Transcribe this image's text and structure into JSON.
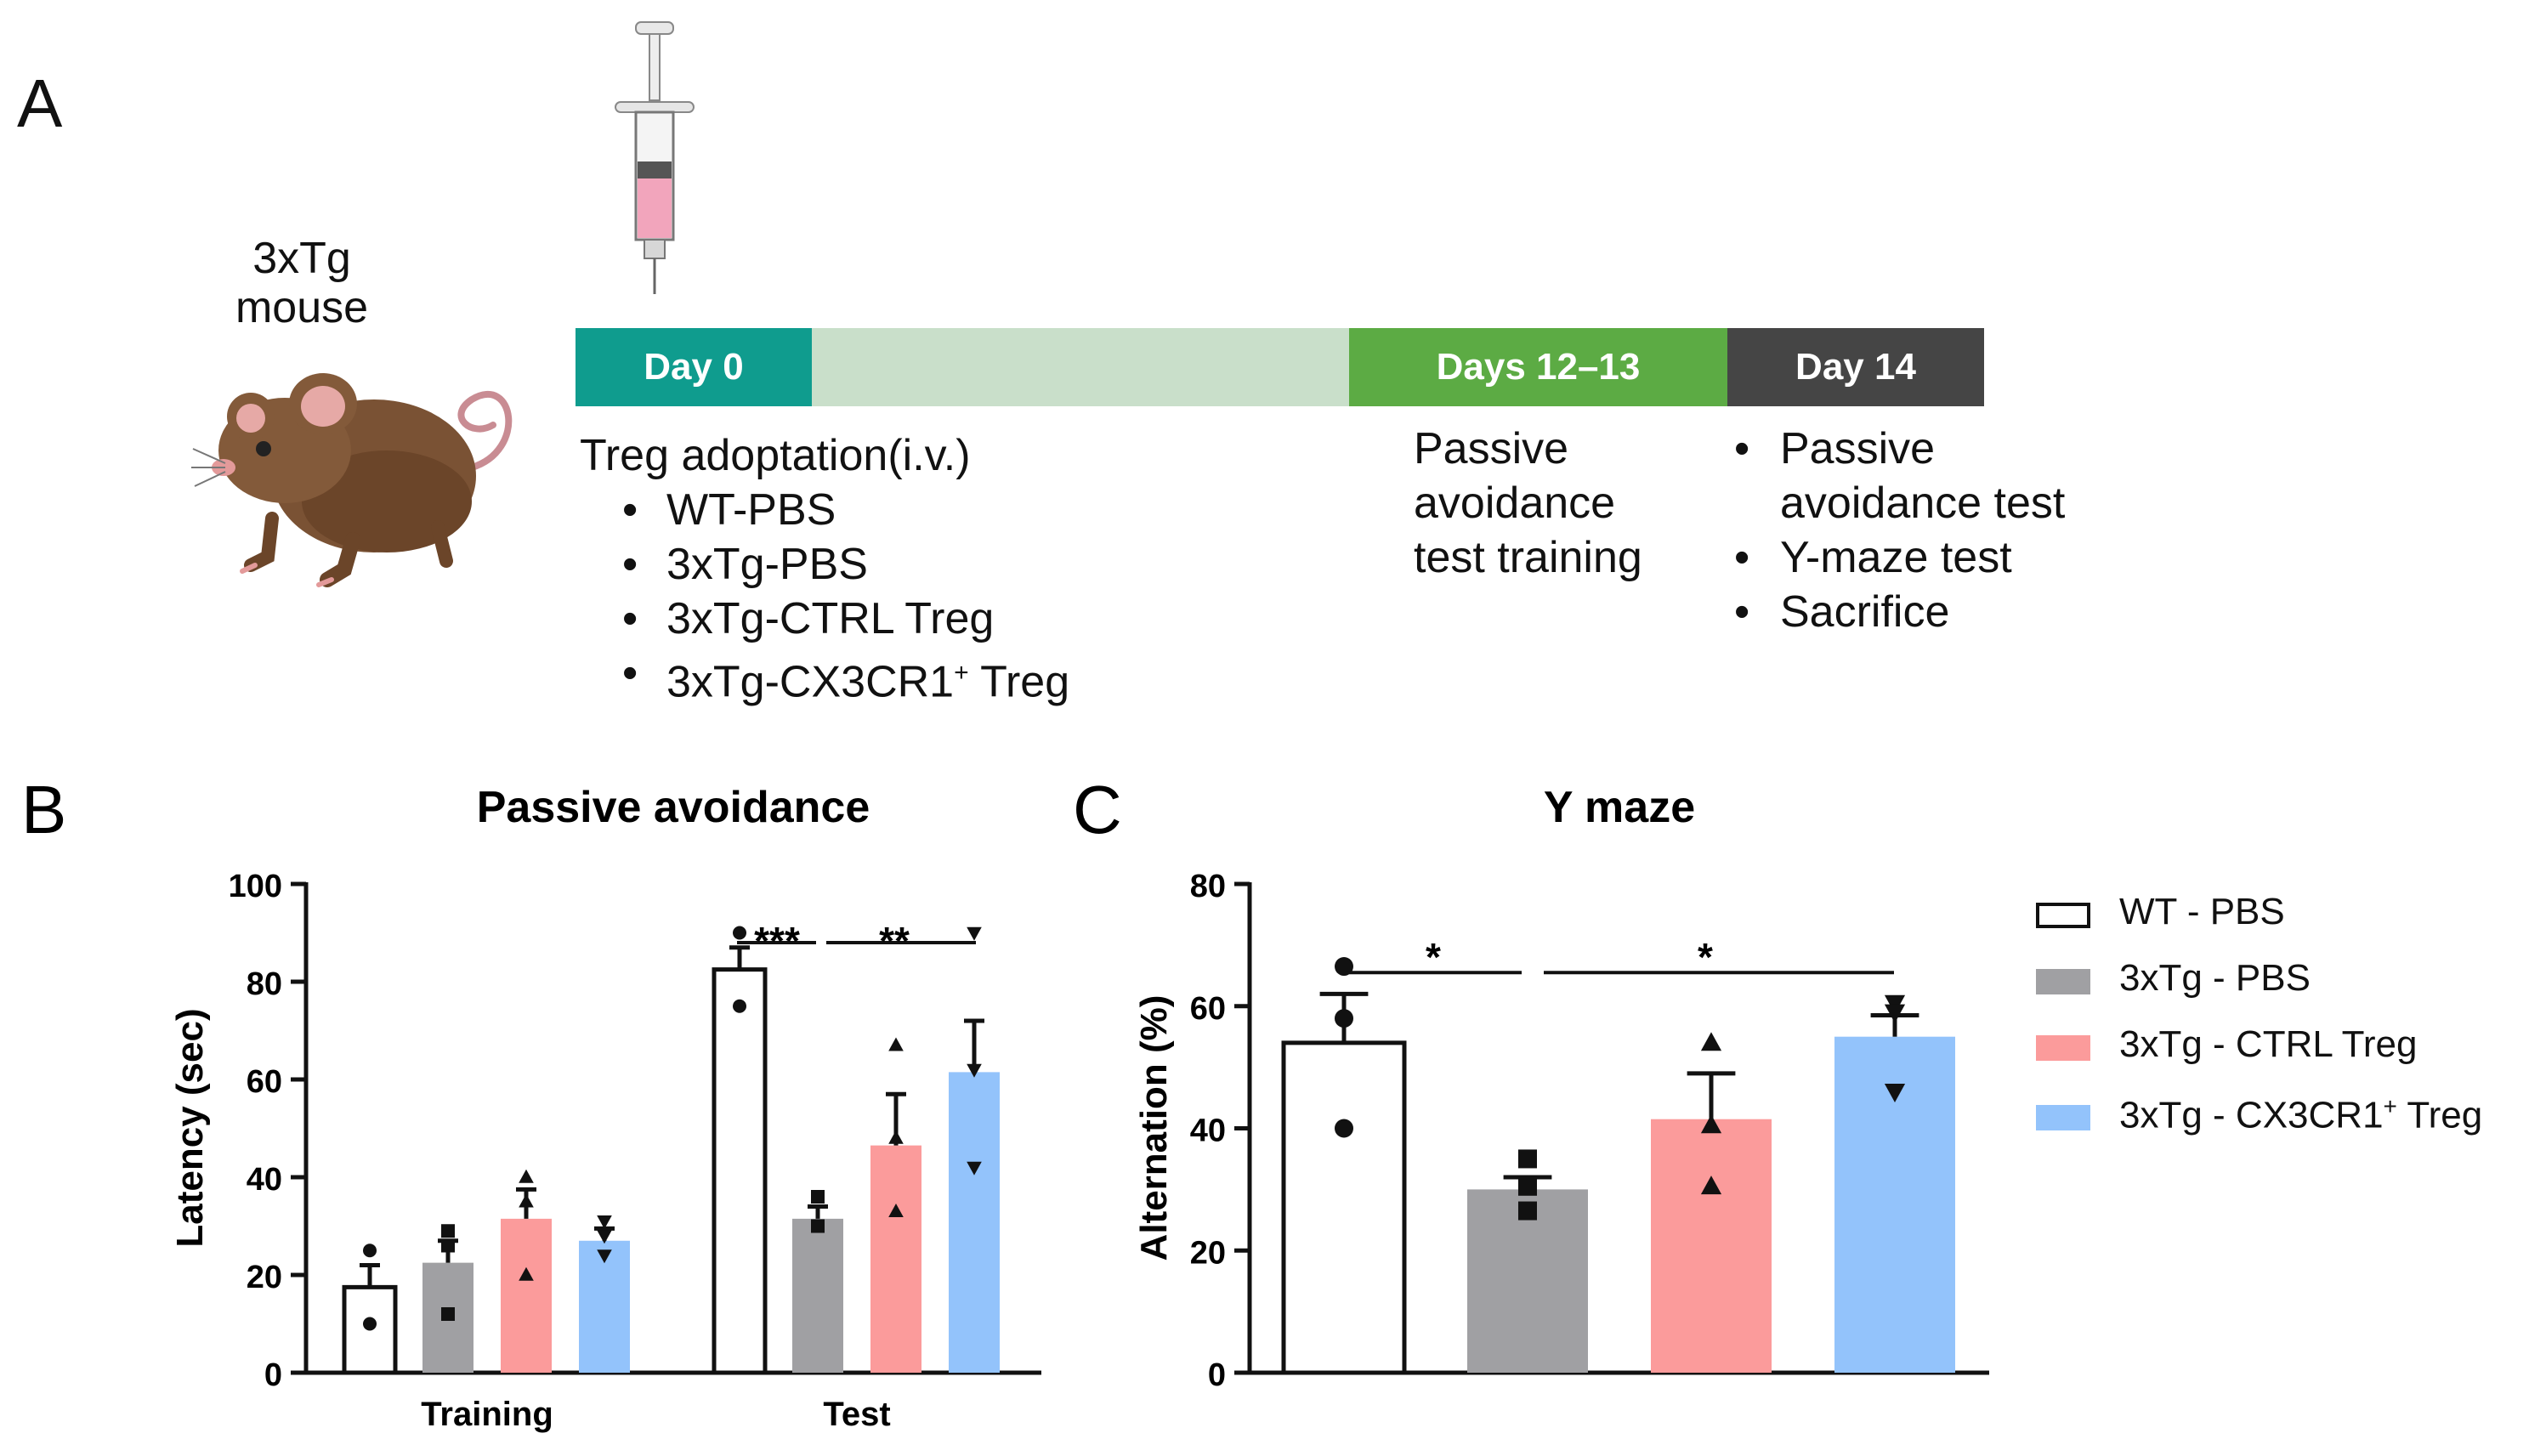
{
  "panelA": {
    "letter": "A",
    "mouse_label_line1": "3xTg",
    "mouse_label_line2": "mouse",
    "timeline": [
      {
        "label": "Day 0",
        "color": "#0f9c8e"
      },
      {
        "label": "",
        "color": "#c9dfca"
      },
      {
        "label": "Days 12–13",
        "color": "#5cab44"
      },
      {
        "label": "Day 14",
        "color": "#454545"
      }
    ],
    "adoption_title": "Treg adoptation(i.v.)",
    "groups": [
      "WT-PBS",
      "3xTg-PBS",
      "3xTg-CTRL Treg",
      "3xTg-CX3CR1",
      "Treg"
    ],
    "groups_sup": "+",
    "training_lines": [
      "Passive",
      "avoidance",
      "test training"
    ],
    "day14_items": [
      "Passive",
      "avoidance test",
      "Y-maze test",
      "Sacrifice"
    ]
  },
  "legend": {
    "entries": [
      "WT - PBS",
      "3xTg - PBS",
      "3xTg - CTRL Treg",
      "3xTg - CX3CR1",
      "Treg"
    ],
    "sup": "+",
    "colors": [
      "#ffffff",
      "#a0a0a3",
      "#fb9b9b",
      "#93c3fb"
    ]
  },
  "chart_data": [
    {
      "type": "bar",
      "panel": "B",
      "title": "Passive avoidance",
      "ylabel": "Latency (sec)",
      "xlabel": "",
      "categories": [
        "Training",
        "Test"
      ],
      "ylim": [
        0,
        100
      ],
      "yticks": [
        "0",
        "20",
        "40",
        "60",
        "80",
        "100"
      ],
      "series": [
        {
          "name": "WT - PBS",
          "values": [
            17.5,
            82.5
          ],
          "sem": [
            4.5,
            4.5
          ],
          "points": [
            [
              25,
              10
            ],
            [
              90,
              75
            ]
          ],
          "marker": "circle"
        },
        {
          "name": "3xTg - PBS",
          "values": [
            22.5,
            31.5
          ],
          "sem": [
            4.5,
            2.5
          ],
          "points": [
            [
              29,
              26,
              12
            ],
            [
              36,
              30,
              30
            ]
          ],
          "marker": "square"
        },
        {
          "name": "3xTg - CTRL Treg",
          "values": [
            31.5,
            46.5
          ],
          "sem": [
            6,
            10.5
          ],
          "points": [
            [
              40,
              35,
              20
            ],
            [
              67,
              48,
              33
            ]
          ],
          "marker": "triangle"
        },
        {
          "name": "3xTg - CX3CR1+ Treg",
          "values": [
            27,
            61.5
          ],
          "sem": [
            2.5,
            10.5
          ],
          "points": [
            [
              31,
              28,
              24
            ],
            [
              90,
              62,
              42
            ]
          ],
          "marker": "triangle-down"
        }
      ],
      "annotations": [
        "***",
        "**"
      ]
    },
    {
      "type": "bar",
      "panel": "C",
      "title": "Y maze",
      "ylabel": "Alternation (%)",
      "xlabel": "",
      "categories": [
        "WT - PBS",
        "3xTg - PBS",
        "3xTg - CTRL Treg",
        "3xTg - CX3CR1+ Treg"
      ],
      "ylim": [
        0,
        80
      ],
      "yticks": [
        "0",
        "20",
        "40",
        "60",
        "80"
      ],
      "values": [
        54,
        30,
        41.5,
        55
      ],
      "sem": [
        8,
        2,
        7.5,
        3.5
      ],
      "points": [
        [
          66.5,
          58,
          40
        ],
        [
          35,
          30.5,
          26.5
        ],
        [
          54,
          40.5,
          30.5
        ],
        [
          60.5,
          59,
          46
        ]
      ],
      "markers": [
        "circle",
        "square",
        "triangle",
        "triangle-down"
      ],
      "annotations": [
        "*",
        "*"
      ]
    }
  ]
}
